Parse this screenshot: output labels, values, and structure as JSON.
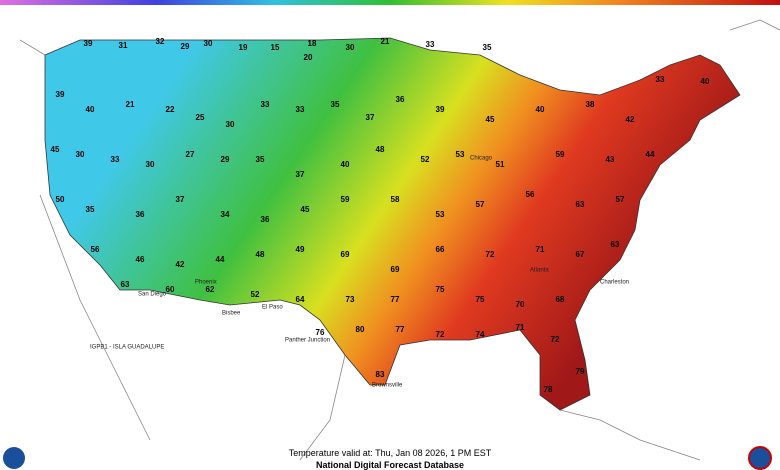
{
  "caption": {
    "valid": "Temperature valid at: Thu, Jan 08 2026, 1 PM EST",
    "source": "National Digital Forecast Database"
  },
  "places": [
    "IGPB1 - ISLA GUADALUPE",
    "Panther Junction",
    "Brownsville",
    "El Paso",
    "Bisbee",
    "San Diego",
    "Phoenix",
    "Chicago",
    "Atlanta",
    "Charleston"
  ],
  "temperatures": [
    39,
    31,
    32,
    29,
    30,
    19,
    15,
    18,
    20,
    30,
    21,
    33,
    35,
    39,
    40,
    21,
    22,
    25,
    30,
    33,
    33,
    35,
    37,
    36,
    39,
    45,
    40,
    38,
    42,
    33,
    40,
    45,
    30,
    33,
    30,
    27,
    29,
    35,
    37,
    40,
    48,
    52,
    53,
    51,
    59,
    43,
    44,
    50,
    35,
    36,
    37,
    34,
    36,
    45,
    59,
    58,
    53,
    57,
    56,
    63,
    57,
    56,
    46,
    42,
    44,
    48,
    49,
    69,
    69,
    66,
    72,
    71,
    67,
    63,
    63,
    60,
    62,
    52,
    64,
    73,
    77,
    75,
    75,
    70,
    68,
    76,
    80,
    77,
    72,
    74,
    71,
    72,
    79,
    78,
    83
  ]
}
